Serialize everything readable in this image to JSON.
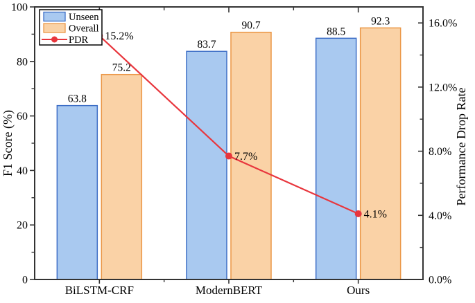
{
  "chart_data": {
    "type": "bar+line",
    "categories": [
      "BiLSTM-CRF",
      "ModernBERT",
      "Ours"
    ],
    "bar_series": [
      {
        "name": "Unseen",
        "values": [
          63.8,
          83.7,
          88.5
        ],
        "value_labels": [
          "63.8",
          "83.7",
          "88.5"
        ],
        "fill": "#A9C9F0",
        "stroke": "#3D6EC6"
      },
      {
        "name": "Overall",
        "values": [
          75.2,
          90.7,
          92.3
        ],
        "value_labels": [
          "75.2",
          "90.7",
          "92.3"
        ],
        "fill": "#FAD2A6",
        "stroke": "#EB9747"
      }
    ],
    "line_series": {
      "name": "PDR",
      "values": [
        15.2,
        7.7,
        4.1
      ],
      "value_labels": [
        "15.2%",
        "7.7%",
        "4.1%"
      ],
      "color": "#E8363D"
    },
    "left_axis": {
      "title": "F1 Score (%)",
      "min": 0,
      "max": 100,
      "major_ticks": [
        0,
        20,
        40,
        60,
        80,
        100
      ],
      "major_tick_labels": [
        "0",
        "20",
        "40",
        "60",
        "80",
        "100"
      ],
      "minor_ticks": [
        10,
        30,
        50,
        70,
        90
      ]
    },
    "right_axis": {
      "title": "Performance Drop Rate",
      "min": 0,
      "max": 17.0,
      "major_ticks": [
        0,
        4,
        8,
        12,
        16
      ],
      "major_tick_labels": [
        "0.0%",
        "4.0%",
        "8.0%",
        "12.0%",
        "16.0%"
      ],
      "minor_ticks": [
        2,
        6,
        10,
        14
      ]
    },
    "legend": {
      "entries": [
        {
          "label": "Unseen",
          "type": "patch",
          "series": 0
        },
        {
          "label": "Overall",
          "type": "patch",
          "series": 1
        },
        {
          "label": "PDR",
          "type": "line"
        }
      ]
    },
    "colors": {
      "spine": "#333333",
      "background": "#ffffff"
    },
    "layout_hints": {
      "grid": "off",
      "legend_position": "upper-left",
      "bar_value_labels": "above bars",
      "line_value_labels": "right of markers"
    }
  }
}
